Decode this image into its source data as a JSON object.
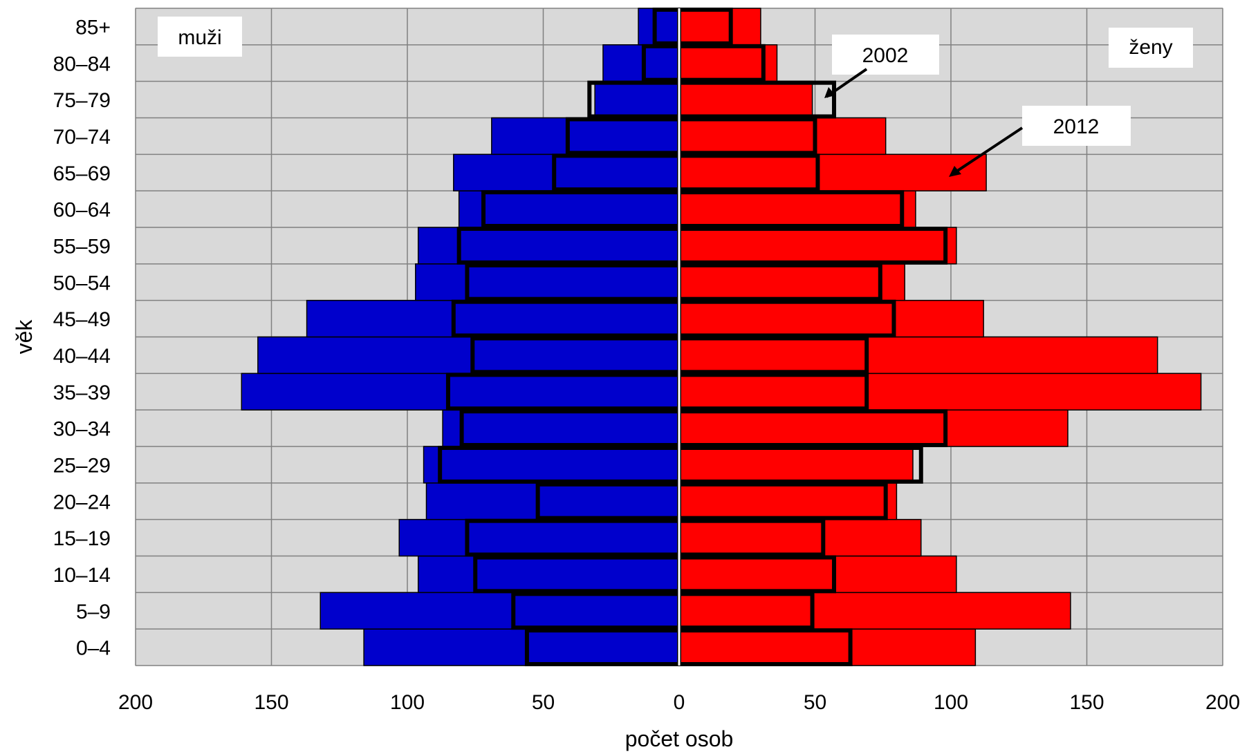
{
  "chart_data": {
    "type": "bar",
    "subtype": "population-pyramid",
    "title": "",
    "xlabel": "počet osob",
    "ylabel": "věk",
    "xlim": [
      -200,
      200
    ],
    "x_ticks": [
      200,
      150,
      100,
      50,
      0,
      50,
      100,
      150,
      200
    ],
    "categories": [
      "0–4",
      "5–9",
      "10–14",
      "15–19",
      "20–24",
      "25–29",
      "30–34",
      "35–39",
      "40–44",
      "45–49",
      "50–54",
      "55–59",
      "60–64",
      "65–69",
      "70–74",
      "75–79",
      "80–84",
      "85+"
    ],
    "series": [
      {
        "name": "muži",
        "year": "2012",
        "side": "left",
        "color": "#0000cc",
        "values": [
          116,
          132,
          96,
          103,
          93,
          94,
          87,
          161,
          155,
          137,
          97,
          96,
          81,
          83,
          69,
          31,
          28,
          15
        ]
      },
      {
        "name": "ženy",
        "year": "2012",
        "side": "right",
        "color": "#ff0000",
        "values": [
          109,
          144,
          102,
          89,
          80,
          86,
          143,
          192,
          176,
          112,
          83,
          102,
          87,
          113,
          76,
          49,
          36,
          30
        ]
      },
      {
        "name": "muži",
        "year": "2002",
        "side": "left",
        "outline": true,
        "values": [
          56,
          61,
          75,
          78,
          52,
          88,
          80,
          85,
          76,
          83,
          78,
          81,
          72,
          46,
          41,
          33,
          13,
          9
        ]
      },
      {
        "name": "ženy",
        "year": "2002",
        "side": "right",
        "outline": true,
        "values": [
          63,
          49,
          57,
          53,
          76,
          89,
          98,
          69,
          69,
          79,
          74,
          98,
          82,
          51,
          50,
          57,
          31,
          19
        ]
      }
    ],
    "annotations": {
      "men_label": "muži",
      "women_label": "ženy",
      "year_outline": "2002",
      "year_filled": "2012"
    },
    "grid": true,
    "plot_background": "#d9d9d9",
    "outline_color": "#000000"
  }
}
